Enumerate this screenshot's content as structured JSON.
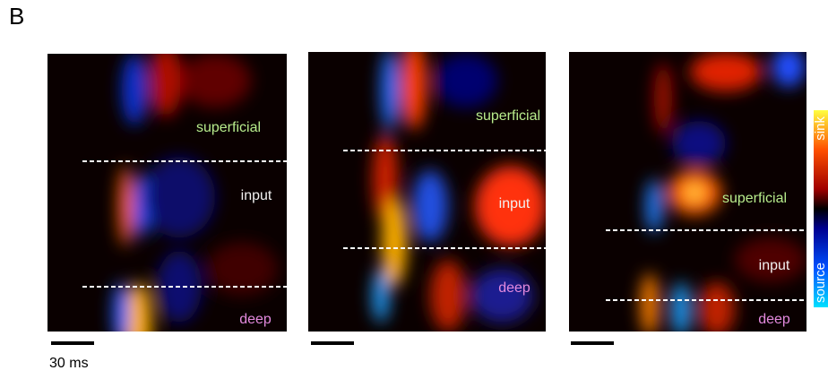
{
  "panel_label": "B",
  "panels": [
    {
      "superficial": "superficial",
      "input": "input",
      "deep": "deep"
    },
    {
      "superficial": "superficial",
      "input": "input",
      "deep": "deep"
    },
    {
      "superficial": "superficial",
      "input": "input",
      "deep": "deep"
    }
  ],
  "scale_bar_label": "30 ms",
  "colorbar": {
    "top": "sink",
    "bottom": "source"
  }
}
